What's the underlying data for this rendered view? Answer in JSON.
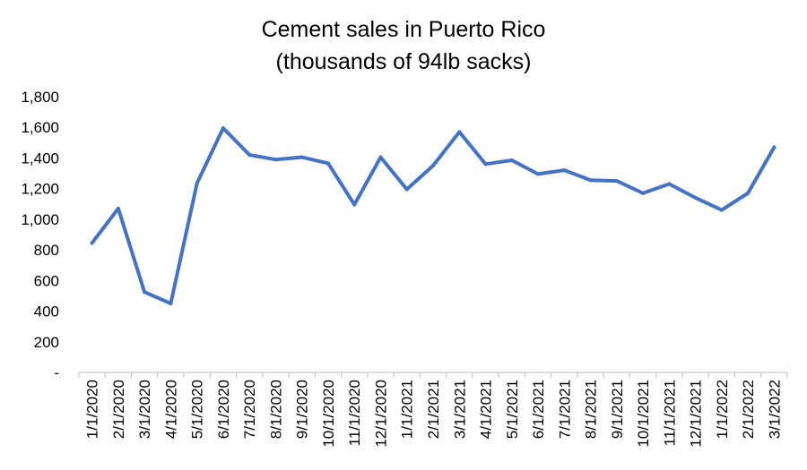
{
  "chart_data": {
    "type": "line",
    "title": "Cement sales in Puerto Rico",
    "subtitle": "(thousands of 94lb sacks)",
    "xlabel": "",
    "ylabel": "",
    "ylim": [
      0,
      1800
    ],
    "y_ticks": [
      0,
      200,
      400,
      600,
      800,
      1000,
      1200,
      1400,
      1600,
      1800
    ],
    "y_tick_labels": [
      "-",
      "200",
      "400",
      "600",
      "800",
      "1,000",
      "1,200",
      "1,400",
      "1,600",
      "1,800"
    ],
    "grid": false,
    "legend": "none",
    "line_color": "#4472C4",
    "x": [
      "1/1/2020",
      "2/1/2020",
      "3/1/2020",
      "4/1/2020",
      "5/1/2020",
      "6/1/2020",
      "7/1/2020",
      "8/1/2020",
      "9/1/2020",
      "10/1/2020",
      "11/1/2020",
      "12/1/2020",
      "1/1/2021",
      "2/1/2021",
      "3/1/2021",
      "4/1/2021",
      "5/1/2021",
      "6/1/2021",
      "7/1/2021",
      "8/1/2021",
      "9/1/2021",
      "10/1/2021",
      "11/1/2021",
      "12/1/2021",
      "1/1/2022",
      "2/1/2022",
      "3/1/2022"
    ],
    "series": [
      {
        "values": [
          845,
          1070,
          525,
          450,
          1235,
          1595,
          1420,
          1390,
          1405,
          1365,
          1095,
          1405,
          1195,
          1350,
          1570,
          1360,
          1385,
          1295,
          1320,
          1255,
          1250,
          1170,
          1230,
          1140,
          1060,
          1170,
          1470
        ]
      }
    ]
  }
}
